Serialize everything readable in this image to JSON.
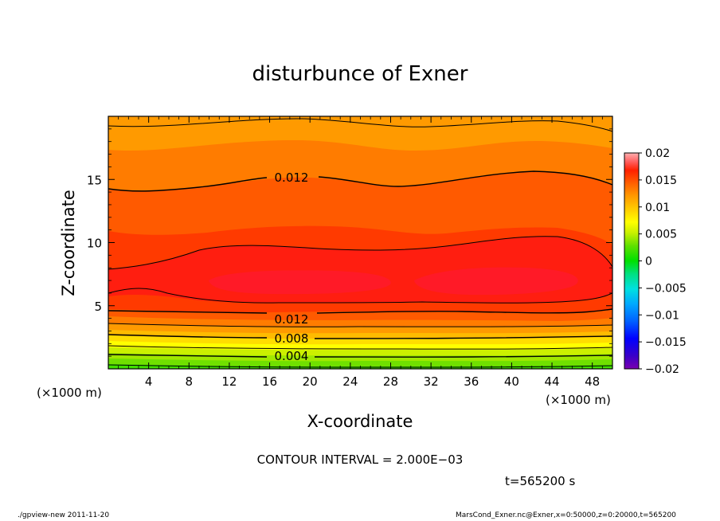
{
  "chart_data": {
    "type": "heatmap",
    "title": "disturbunce of Exner",
    "xlabel": "X-coordinate",
    "ylabel": "Z-coordinate",
    "x_unit": "(×1000 m)",
    "x_unit_right": "(×1000 m)",
    "xlim": [
      0,
      50
    ],
    "ylim": [
      0,
      20
    ],
    "x_ticks": [
      4,
      8,
      12,
      16,
      20,
      24,
      28,
      32,
      36,
      40,
      44,
      48
    ],
    "y_ticks": [
      5,
      10,
      15
    ],
    "contour_labels": [
      {
        "text": "0.012",
        "x": 19,
        "z": 15
      },
      {
        "text": "0.012",
        "x": 19,
        "z": 4.0
      },
      {
        "text": "0.008",
        "x": 19,
        "z": 2.5
      },
      {
        "text": "0.004",
        "x": 19,
        "z": 1.0
      }
    ],
    "colorbar": {
      "ticks": [
        "0.02",
        "0.015",
        "0.01",
        "0.005",
        "0",
        "−0.005",
        "−0.01",
        "−0.015",
        "−0.02"
      ],
      "range": [
        -0.02,
        0.02
      ]
    },
    "contour_interval": "CONTOUR INTERVAL = 2.000E−03",
    "time_label": "t=565200 s"
  },
  "footer": {
    "left": "./gpview-new   2011-11-20",
    "right": "MarsCond_Exner.nc@Exner,x=0:50000,z=0:20000,t=565200"
  }
}
